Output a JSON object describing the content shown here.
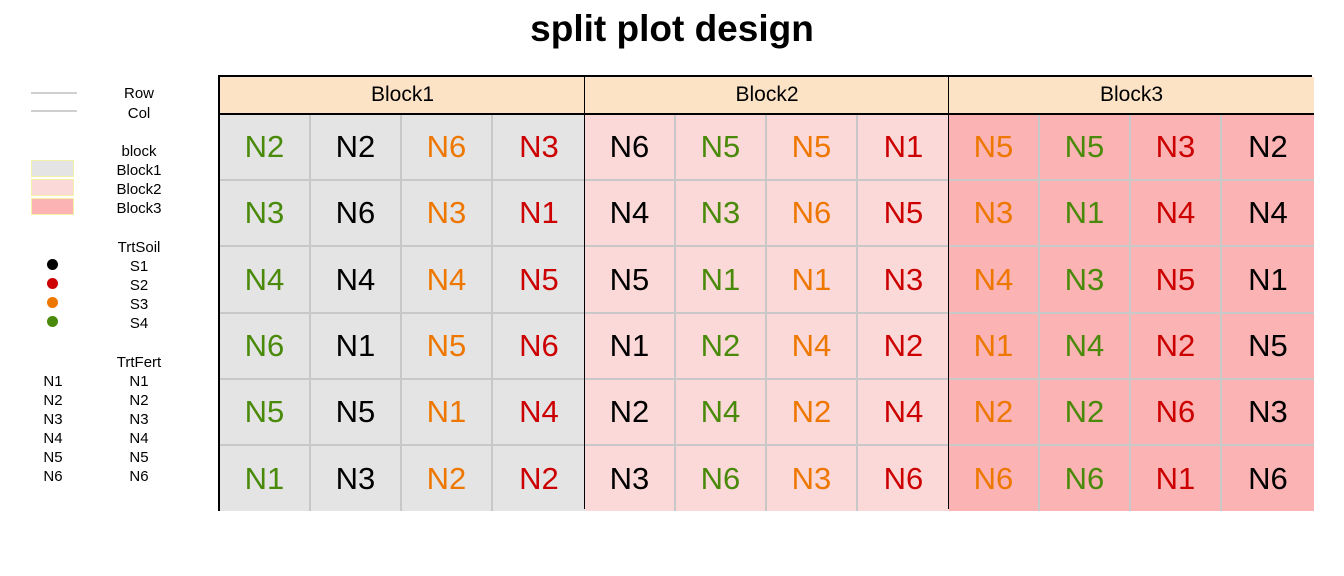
{
  "title": "split plot design",
  "legend": {
    "row_label": "Row",
    "col_label": "Col",
    "block_heading": "block",
    "blocks": [
      {
        "label": "Block1",
        "color": "#e4e4e4"
      },
      {
        "label": "Block2",
        "color": "#fcd9d9"
      },
      {
        "label": "Block3",
        "color": "#fbb3b3"
      }
    ],
    "soil_heading": "TrtSoil",
    "soils": [
      {
        "label": "S1",
        "color": "#000000"
      },
      {
        "label": "S2",
        "color": "#cc0000"
      },
      {
        "label": "S3",
        "color": "#ee7700"
      },
      {
        "label": "S4",
        "color": "#4a8a0a"
      }
    ],
    "fert_heading": "TrtFert",
    "ferts": [
      {
        "symbol": "N1",
        "label": "N1"
      },
      {
        "symbol": "N2",
        "label": "N2"
      },
      {
        "symbol": "N3",
        "label": "N3"
      },
      {
        "symbol": "N4",
        "label": "N4"
      },
      {
        "symbol": "N5",
        "label": "N5"
      },
      {
        "symbol": "N6",
        "label": "N6"
      }
    ]
  },
  "colors": {
    "header_bg": "#fde3c6",
    "grid_line": "#c8c8c8",
    "border": "#000000"
  },
  "blocks": [
    {
      "label": "Block1",
      "soils": [
        "S4",
        "S1",
        "S3",
        "S2"
      ],
      "grid": [
        [
          "N2",
          "N2",
          "N6",
          "N3"
        ],
        [
          "N3",
          "N6",
          "N3",
          "N1"
        ],
        [
          "N4",
          "N4",
          "N4",
          "N5"
        ],
        [
          "N6",
          "N1",
          "N5",
          "N6"
        ],
        [
          "N5",
          "N5",
          "N1",
          "N4"
        ],
        [
          "N1",
          "N3",
          "N2",
          "N2"
        ]
      ]
    },
    {
      "label": "Block2",
      "soils": [
        "S1",
        "S4",
        "S3",
        "S2"
      ],
      "grid": [
        [
          "N6",
          "N5",
          "N5",
          "N1"
        ],
        [
          "N4",
          "N3",
          "N6",
          "N5"
        ],
        [
          "N5",
          "N1",
          "N1",
          "N3"
        ],
        [
          "N1",
          "N2",
          "N4",
          "N2"
        ],
        [
          "N2",
          "N4",
          "N2",
          "N4"
        ],
        [
          "N3",
          "N6",
          "N3",
          "N6"
        ]
      ]
    },
    {
      "label": "Block3",
      "soils": [
        "S3",
        "S4",
        "S2",
        "S1"
      ],
      "grid": [
        [
          "N5",
          "N5",
          "N3",
          "N2"
        ],
        [
          "N3",
          "N1",
          "N4",
          "N4"
        ],
        [
          "N4",
          "N3",
          "N5",
          "N1"
        ],
        [
          "N1",
          "N4",
          "N2",
          "N5"
        ],
        [
          "N2",
          "N2",
          "N6",
          "N3"
        ],
        [
          "N6",
          "N6",
          "N1",
          "N6"
        ]
      ]
    }
  ]
}
